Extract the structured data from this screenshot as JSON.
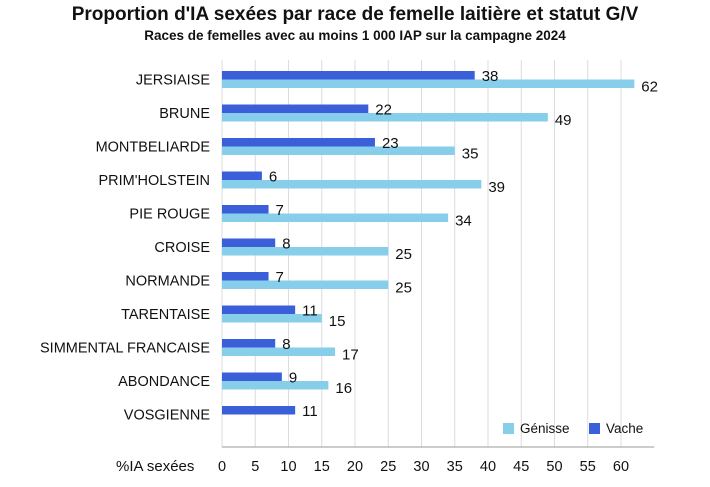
{
  "chart_data": {
    "type": "bar",
    "orientation": "horizontal",
    "title": "Proportion d'IA sexées par race de femelle laitière et statut G/V",
    "subtitle": "Races de femelles avec au moins 1 000 IAP sur la campagne 2024",
    "xlabel": "%IA sexées",
    "xlim": [
      0,
      65
    ],
    "xticks": [
      0,
      5,
      10,
      15,
      20,
      25,
      30,
      35,
      40,
      45,
      50,
      55,
      60
    ],
    "grid": "vertical",
    "legend_position": "bottom-right",
    "categories": [
      "JERSIAISE",
      "BRUNE",
      "MONTBELIARDE",
      "PRIM'HOLSTEIN",
      "PIE ROUGE",
      "CROISE",
      "NORMANDE",
      "TARENTAISE",
      "SIMMENTAL FRANCAISE",
      "ABONDANCE",
      "VOSGIENNE"
    ],
    "series": [
      {
        "name": "Vache",
        "color": "#3a5fd9",
        "values": [
          38,
          22,
          23,
          6,
          7,
          8,
          7,
          11,
          8,
          9,
          11
        ]
      },
      {
        "name": "Génisse",
        "color": "#87ceeb",
        "values": [
          62,
          49,
          35,
          39,
          34,
          25,
          25,
          15,
          17,
          16,
          null
        ]
      }
    ],
    "legend_order": [
      "Génisse",
      "Vache"
    ]
  }
}
